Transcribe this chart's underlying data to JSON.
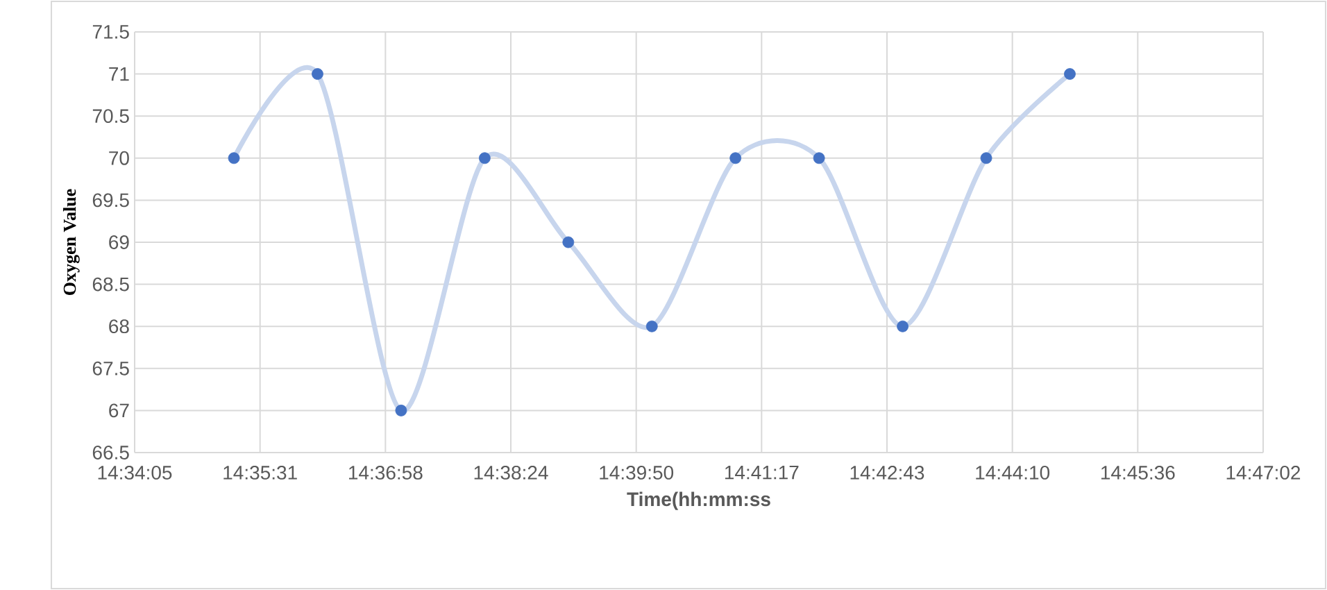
{
  "chart_data": {
    "type": "line",
    "xlabel": "Time(hh:mm:ss",
    "ylabel": "Oxygen Value",
    "x": [
      14.587,
      14.603,
      14.619,
      14.635,
      14.651,
      14.667,
      14.683,
      14.699,
      14.715,
      14.731,
      14.747
    ],
    "series": [
      {
        "color": "#4472c4",
        "values": [
          70,
          71,
          67,
          70,
          69,
          68,
          70,
          70,
          68,
          70,
          71
        ]
      }
    ],
    "xlim": [
      14.568,
      14.784
    ],
    "xticks": [
      {
        "value": 14.568,
        "label": "14:34:05"
      },
      {
        "value": 14.592,
        "label": "14:35:31"
      },
      {
        "value": 14.616,
        "label": "14:36:58"
      },
      {
        "value": 14.64,
        "label": "14:38:24"
      },
      {
        "value": 14.664,
        "label": "14:39:50"
      },
      {
        "value": 14.688,
        "label": "14:41:17"
      },
      {
        "value": 14.712,
        "label": "14:42:43"
      },
      {
        "value": 14.736,
        "label": "14:44:10"
      },
      {
        "value": 14.76,
        "label": "14:45:36"
      },
      {
        "value": 14.784,
        "label": "14:47:02"
      }
    ],
    "ylim": [
      66.5,
      71.5
    ],
    "yticks": [
      66.5,
      67,
      67.5,
      68,
      68.5,
      69,
      69.5,
      70,
      70.5,
      71,
      71.5
    ],
    "grid": true,
    "marker": "circle"
  }
}
